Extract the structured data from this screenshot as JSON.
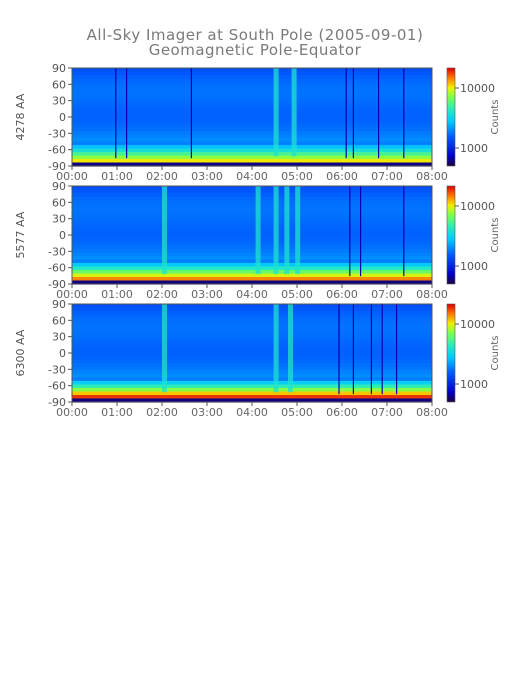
{
  "title": "All-Sky Imager at South Pole (2005-09-01)",
  "subtitle": "Geomagnetic Pole-Equator",
  "chart_data": [
    {
      "type": "heatmap",
      "ylabel": "4278 AA",
      "x_ticks": [
        "00:00",
        "01:00",
        "02:00",
        "03:00",
        "04:00",
        "05:00",
        "06:00",
        "07:00",
        "08:00"
      ],
      "y_ticks": [
        90,
        60,
        30,
        0,
        -30,
        -60,
        -90
      ],
      "ylim": [
        -90,
        90
      ],
      "xlim": [
        "00:00",
        "08:00"
      ],
      "colorbar": {
        "label": "Counts",
        "ticks": [
          "10000",
          "1000"
        ],
        "scale": "log"
      },
      "band_level": 0.75,
      "bright_columns": [
        0.56,
        0.61
      ],
      "dark_columns": [
        0.12,
        0.15,
        0.33,
        0.76,
        0.78,
        0.85,
        0.92
      ]
    },
    {
      "type": "heatmap",
      "ylabel": "5577 AA",
      "x_ticks": [
        "00:00",
        "01:00",
        "02:00",
        "03:00",
        "04:00",
        "05:00",
        "06:00",
        "07:00",
        "08:00"
      ],
      "y_ticks": [
        90,
        60,
        30,
        0,
        -30,
        -60,
        -90
      ],
      "ylim": [
        -90,
        90
      ],
      "xlim": [
        "00:00",
        "08:00"
      ],
      "colorbar": {
        "label": "Counts",
        "ticks": [
          "10000",
          "1000"
        ],
        "scale": "log"
      },
      "band_level": 0.82,
      "bright_columns": [
        0.25,
        0.51,
        0.56,
        0.59,
        0.62
      ],
      "dark_columns": [
        0.77,
        0.8,
        0.92
      ]
    },
    {
      "type": "heatmap",
      "ylabel": "6300 AA",
      "x_ticks": [
        "00:00",
        "01:00",
        "02:00",
        "03:00",
        "04:00",
        "05:00",
        "06:00",
        "07:00",
        "08:00"
      ],
      "y_ticks": [
        90,
        60,
        30,
        0,
        -30,
        -60,
        -90
      ],
      "ylim": [
        -90,
        90
      ],
      "xlim": [
        "00:00",
        "08:00"
      ],
      "colorbar": {
        "label": "Counts",
        "ticks": [
          "10000",
          "1000"
        ],
        "scale": "log"
      },
      "band_level": 0.88,
      "bright_columns": [
        0.25,
        0.56,
        0.6
      ],
      "dark_columns": [
        0.74,
        0.78,
        0.83,
        0.86,
        0.9
      ]
    }
  ]
}
